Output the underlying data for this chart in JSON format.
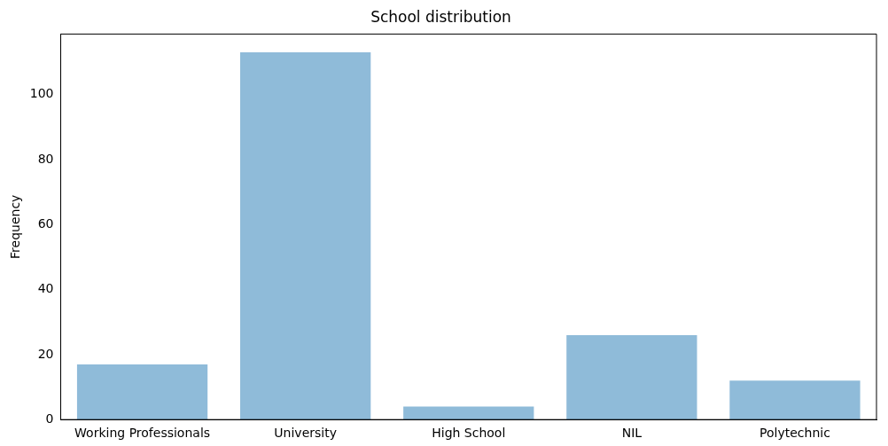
{
  "chart_data": {
    "type": "bar",
    "title": "School distribution",
    "ylabel": "Frequency",
    "categories": [
      "Working Professionals",
      "University",
      "High School",
      "NIL",
      "Polytechnic"
    ],
    "values": [
      17,
      113,
      4,
      26,
      12
    ],
    "color": "#8fbbd9",
    "ylim": [
      0,
      118.65
    ],
    "yticks": [
      0,
      20,
      40,
      60,
      80,
      100
    ],
    "grid": false,
    "legend": false
  }
}
